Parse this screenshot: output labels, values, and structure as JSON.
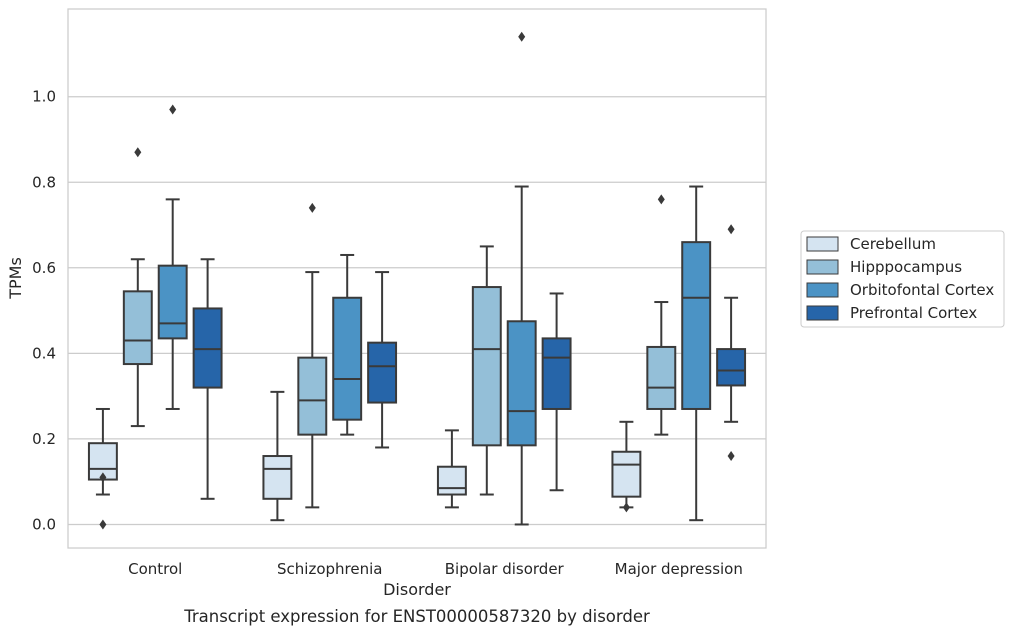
{
  "caption": "Transcript expression for ENST00000587320 by disorder",
  "chart_data": {
    "type": "box",
    "xlabel": "Disorder",
    "ylabel": "TPMs",
    "ylim": [
      -0.055,
      1.205
    ],
    "yticks": [
      0.0,
      0.2,
      0.4,
      0.6,
      0.8,
      1.0
    ],
    "ytick_labels": [
      "0.0",
      "0.2",
      "0.4",
      "0.6",
      "0.8",
      "1.0"
    ],
    "grid": "horizontal",
    "legend_position": "right",
    "categories": [
      "Control",
      "Schizophrenia",
      "Bipolar disorder",
      "Major depression"
    ],
    "series": [
      {
        "name": "Cerebellum",
        "color": "#d5e4f1",
        "boxes": [
          {
            "whisker_low": 0.07,
            "q1": 0.105,
            "median": 0.13,
            "q3": 0.19,
            "whisker_high": 0.27,
            "outliers": [
              0.11,
              0.0
            ]
          },
          {
            "whisker_low": 0.01,
            "q1": 0.06,
            "median": 0.13,
            "q3": 0.16,
            "whisker_high": 0.31,
            "outliers": []
          },
          {
            "whisker_low": 0.04,
            "q1": 0.07,
            "median": 0.085,
            "q3": 0.135,
            "whisker_high": 0.22,
            "outliers": []
          },
          {
            "whisker_low": 0.04,
            "q1": 0.065,
            "median": 0.14,
            "q3": 0.17,
            "whisker_high": 0.24,
            "outliers": [
              0.04
            ]
          }
        ]
      },
      {
        "name": "Hipppocampus",
        "color": "#94bfd8",
        "boxes": [
          {
            "whisker_low": 0.23,
            "q1": 0.375,
            "median": 0.43,
            "q3": 0.545,
            "whisker_high": 0.62,
            "outliers": [
              0.87
            ]
          },
          {
            "whisker_low": 0.04,
            "q1": 0.21,
            "median": 0.29,
            "q3": 0.39,
            "whisker_high": 0.59,
            "outliers": [
              0.74
            ]
          },
          {
            "whisker_low": 0.07,
            "q1": 0.185,
            "median": 0.41,
            "q3": 0.555,
            "whisker_high": 0.65,
            "outliers": []
          },
          {
            "whisker_low": 0.21,
            "q1": 0.27,
            "median": 0.32,
            "q3": 0.415,
            "whisker_high": 0.52,
            "outliers": [
              0.76
            ]
          }
        ]
      },
      {
        "name": "Orbitofontal Cortex",
        "color": "#4b93c5",
        "boxes": [
          {
            "whisker_low": 0.27,
            "q1": 0.435,
            "median": 0.47,
            "q3": 0.605,
            "whisker_high": 0.76,
            "outliers": [
              0.97
            ]
          },
          {
            "whisker_low": 0.21,
            "q1": 0.245,
            "median": 0.34,
            "q3": 0.53,
            "whisker_high": 0.63,
            "outliers": []
          },
          {
            "whisker_low": 0.0,
            "q1": 0.185,
            "median": 0.265,
            "q3": 0.475,
            "whisker_high": 0.79,
            "outliers": [
              1.14
            ]
          },
          {
            "whisker_low": 0.01,
            "q1": 0.27,
            "median": 0.53,
            "q3": 0.66,
            "whisker_high": 0.79,
            "outliers": []
          }
        ]
      },
      {
        "name": "Prefrontal Cortex",
        "color": "#2665a9",
        "boxes": [
          {
            "whisker_low": 0.06,
            "q1": 0.32,
            "median": 0.41,
            "q3": 0.505,
            "whisker_high": 0.62,
            "outliers": []
          },
          {
            "whisker_low": 0.18,
            "q1": 0.285,
            "median": 0.37,
            "q3": 0.425,
            "whisker_high": 0.59,
            "outliers": []
          },
          {
            "whisker_low": 0.08,
            "q1": 0.27,
            "median": 0.39,
            "q3": 0.435,
            "whisker_high": 0.54,
            "outliers": []
          },
          {
            "whisker_low": 0.24,
            "q1": 0.325,
            "median": 0.36,
            "q3": 0.41,
            "whisker_high": 0.53,
            "outliers": [
              0.69,
              0.16
            ]
          }
        ]
      }
    ]
  }
}
